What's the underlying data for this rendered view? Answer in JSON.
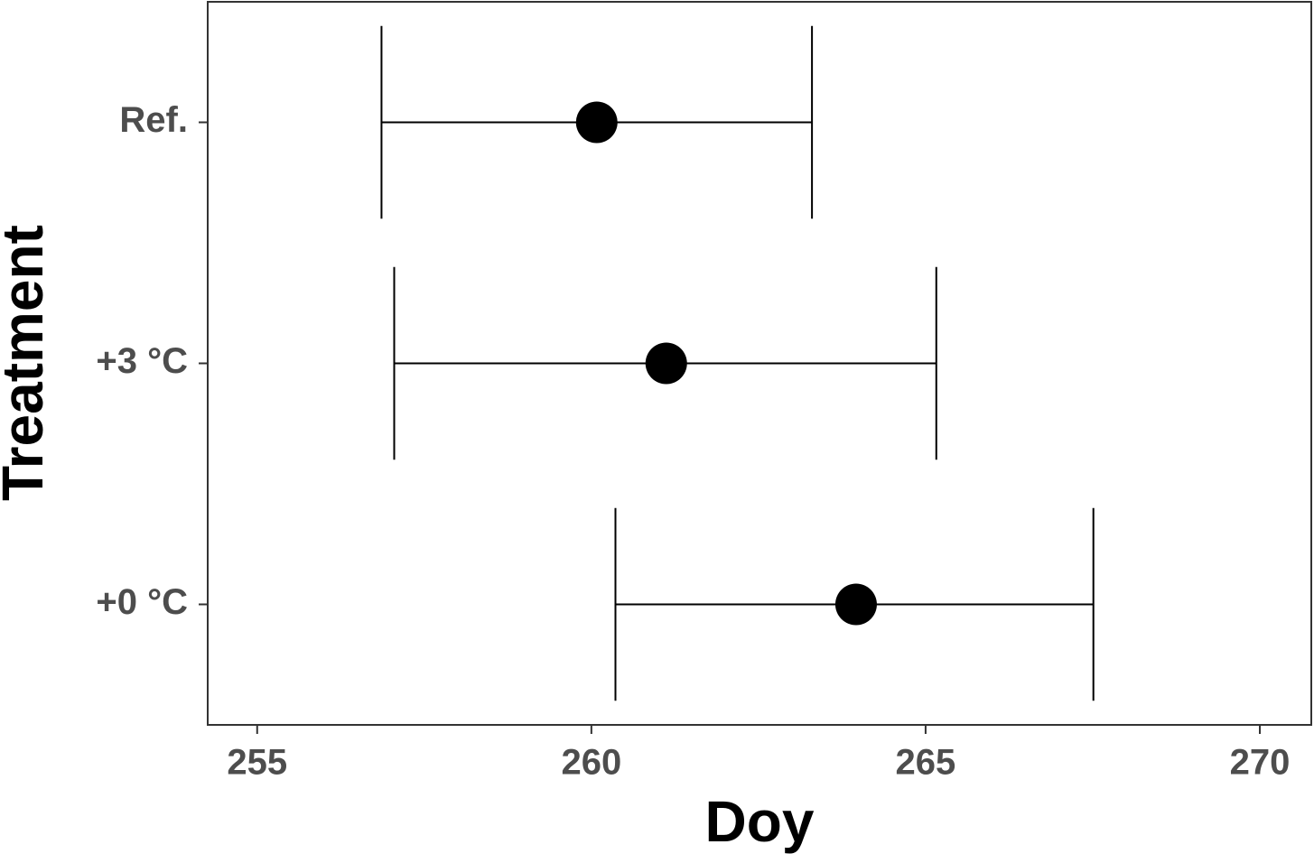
{
  "chart_data": {
    "type": "dot-errorbar",
    "x_label": "Doy",
    "y_label": "Treatment",
    "categories": [
      "Ref.",
      "+3 °C",
      "+0 °C"
    ],
    "values": [
      260.08,
      261.12,
      263.96
    ],
    "lower": [
      256.86,
      257.05,
      260.36
    ],
    "upper": [
      263.3,
      265.16,
      267.51
    ],
    "color": "#000000",
    "xlim": [
      254.26,
      270.77
    ],
    "xticks": [
      255,
      260,
      265,
      270
    ],
    "grid": false
  }
}
